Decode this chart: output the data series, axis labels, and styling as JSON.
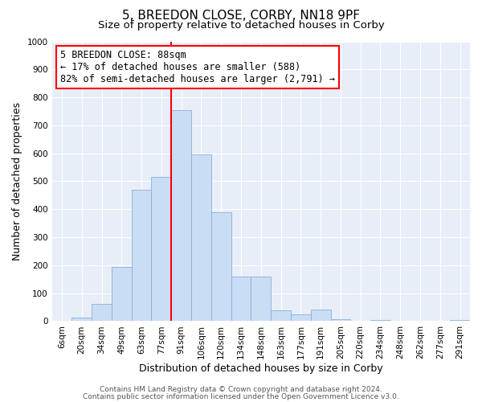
{
  "title": "5, BREEDON CLOSE, CORBY, NN18 9PF",
  "subtitle": "Size of property relative to detached houses in Corby",
  "xlabel": "Distribution of detached houses by size in Corby",
  "ylabel": "Number of detached properties",
  "bar_labels": [
    "6sqm",
    "20sqm",
    "34sqm",
    "49sqm",
    "63sqm",
    "77sqm",
    "91sqm",
    "106sqm",
    "120sqm",
    "134sqm",
    "148sqm",
    "163sqm",
    "177sqm",
    "191sqm",
    "205sqm",
    "220sqm",
    "234sqm",
    "248sqm",
    "262sqm",
    "277sqm",
    "291sqm"
  ],
  "bar_values": [
    0,
    13,
    62,
    195,
    470,
    515,
    755,
    595,
    390,
    160,
    160,
    40,
    25,
    42,
    8,
    0,
    5,
    0,
    0,
    0,
    5
  ],
  "bar_color": "#c9ddf5",
  "bar_edge_color": "#8ab0d8",
  "vline_color": "red",
  "annotation_line1": "5 BREEDON CLOSE: 88sqm",
  "annotation_line2": "← 17% of detached houses are smaller (588)",
  "annotation_line3": "82% of semi-detached houses are larger (2,791) →",
  "annotation_box_color": "white",
  "annotation_box_edge": "red",
  "ylim": [
    0,
    1000
  ],
  "yticks": [
    0,
    100,
    200,
    300,
    400,
    500,
    600,
    700,
    800,
    900,
    1000
  ],
  "footer1": "Contains HM Land Registry data © Crown copyright and database right 2024.",
  "footer2": "Contains public sector information licensed under the Open Government Licence v3.0.",
  "title_fontsize": 11,
  "subtitle_fontsize": 9.5,
  "xlabel_fontsize": 9,
  "ylabel_fontsize": 9,
  "tick_fontsize": 7.5,
  "annotation_fontsize": 8.5,
  "footer_fontsize": 6.5,
  "bg_color": "#e8eef8"
}
